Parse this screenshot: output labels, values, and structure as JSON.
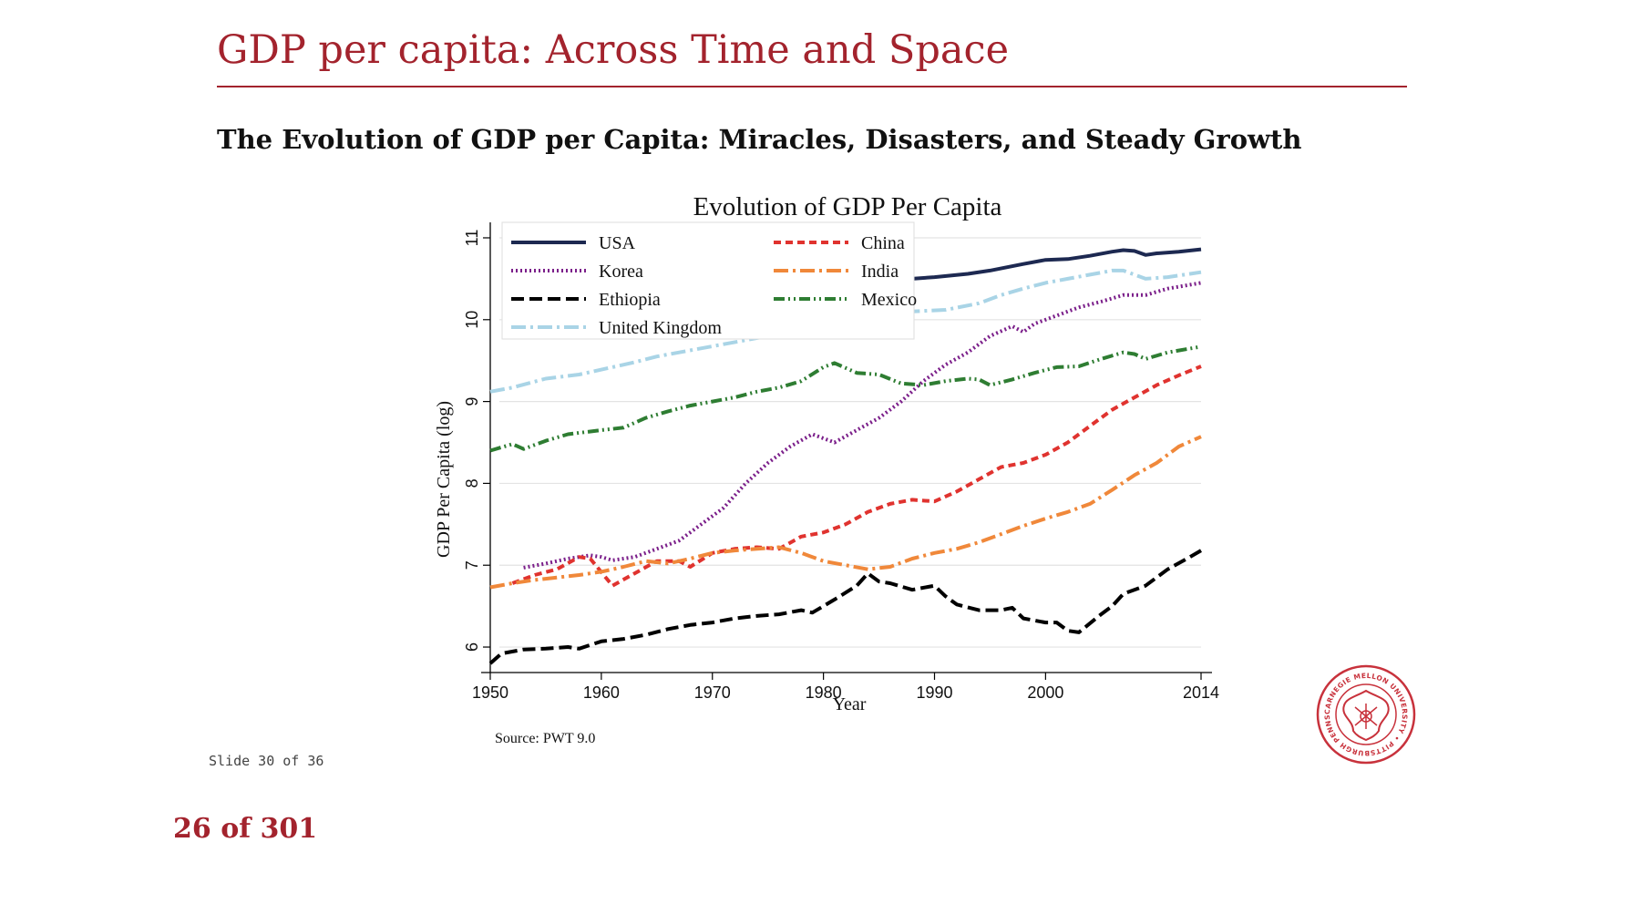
{
  "slide": {
    "title": "GDP per capita: Across Time and Space",
    "subtitle": "The Evolution of GDP per Capita: Miracles, Disasters, and Steady Growth",
    "slide_counter": "Slide 30 of 36",
    "page_counter": "26 of 301",
    "seal_text": "CARNEGIE MELLON UNIVERSITY • PITTSBURGH PENNSYLVANIA 1900",
    "accent_color": "#a3232d"
  },
  "chart_data": {
    "type": "line",
    "title": "Evolution of GDP Per Capita",
    "xlabel": "Year",
    "ylabel": "GDP Per Capita (log)",
    "source": "Source: PWT 9.0",
    "xlim": [
      1950,
      2014
    ],
    "ylim": [
      5.8,
      11.1
    ],
    "xticks": [
      1950,
      1960,
      1970,
      1980,
      1990,
      2000,
      2014
    ],
    "yticks": [
      6,
      7,
      8,
      9,
      10,
      11
    ],
    "grid": true,
    "legend_position": "top-left",
    "series": [
      {
        "name": "USA",
        "color": "#1d2951",
        "dash": "solid",
        "points": [
          [
            1985,
            10.45
          ],
          [
            1988,
            10.5
          ],
          [
            1990,
            10.52
          ],
          [
            1993,
            10.56
          ],
          [
            1995,
            10.6
          ],
          [
            1998,
            10.68
          ],
          [
            2000,
            10.73
          ],
          [
            2002,
            10.74
          ],
          [
            2004,
            10.78
          ],
          [
            2006,
            10.83
          ],
          [
            2007,
            10.85
          ],
          [
            2008,
            10.84
          ],
          [
            2009,
            10.79
          ],
          [
            2010,
            10.81
          ],
          [
            2012,
            10.83
          ],
          [
            2014,
            10.86
          ]
        ]
      },
      {
        "name": "Korea",
        "color": "#7b1f8a",
        "dash": "dotted",
        "points": [
          [
            1953,
            6.97
          ],
          [
            1955,
            7.02
          ],
          [
            1957,
            7.08
          ],
          [
            1959,
            7.12
          ],
          [
            1960,
            7.1
          ],
          [
            1961,
            7.06
          ],
          [
            1963,
            7.1
          ],
          [
            1965,
            7.2
          ],
          [
            1967,
            7.3
          ],
          [
            1969,
            7.5
          ],
          [
            1971,
            7.7
          ],
          [
            1973,
            8.0
          ],
          [
            1975,
            8.25
          ],
          [
            1977,
            8.45
          ],
          [
            1979,
            8.6
          ],
          [
            1980,
            8.55
          ],
          [
            1981,
            8.5
          ],
          [
            1983,
            8.65
          ],
          [
            1985,
            8.8
          ],
          [
            1987,
            9.0
          ],
          [
            1989,
            9.25
          ],
          [
            1991,
            9.45
          ],
          [
            1993,
            9.6
          ],
          [
            1995,
            9.8
          ],
          [
            1997,
            9.92
          ],
          [
            1998,
            9.85
          ],
          [
            1999,
            9.95
          ],
          [
            2001,
            10.05
          ],
          [
            2003,
            10.15
          ],
          [
            2005,
            10.22
          ],
          [
            2007,
            10.3
          ],
          [
            2009,
            10.3
          ],
          [
            2011,
            10.38
          ],
          [
            2014,
            10.45
          ]
        ]
      },
      {
        "name": "Ethiopia",
        "color": "#000000",
        "dash": "longdash",
        "points": [
          [
            1950,
            5.8
          ],
          [
            1951,
            5.92
          ],
          [
            1953,
            5.97
          ],
          [
            1955,
            5.98
          ],
          [
            1957,
            6.0
          ],
          [
            1958,
            5.98
          ],
          [
            1960,
            6.07
          ],
          [
            1962,
            6.1
          ],
          [
            1964,
            6.15
          ],
          [
            1966,
            6.22
          ],
          [
            1968,
            6.27
          ],
          [
            1970,
            6.3
          ],
          [
            1972,
            6.35
          ],
          [
            1974,
            6.38
          ],
          [
            1976,
            6.4
          ],
          [
            1978,
            6.45
          ],
          [
            1979,
            6.42
          ],
          [
            1981,
            6.58
          ],
          [
            1983,
            6.75
          ],
          [
            1984,
            6.9
          ],
          [
            1985,
            6.8
          ],
          [
            1986,
            6.78
          ],
          [
            1988,
            6.7
          ],
          [
            1990,
            6.75
          ],
          [
            1991,
            6.62
          ],
          [
            1992,
            6.52
          ],
          [
            1994,
            6.45
          ],
          [
            1996,
            6.45
          ],
          [
            1997,
            6.48
          ],
          [
            1998,
            6.35
          ],
          [
            2000,
            6.3
          ],
          [
            2001,
            6.3
          ],
          [
            2002,
            6.2
          ],
          [
            2003,
            6.18
          ],
          [
            2005,
            6.4
          ],
          [
            2006,
            6.5
          ],
          [
            2007,
            6.65
          ],
          [
            2009,
            6.75
          ],
          [
            2011,
            6.95
          ],
          [
            2013,
            7.1
          ],
          [
            2014,
            7.18
          ]
        ]
      },
      {
        "name": "United Kingdom",
        "color": "#a9d4e6",
        "dash": "dashdot",
        "points": [
          [
            1950,
            9.12
          ],
          [
            1952,
            9.17
          ],
          [
            1955,
            9.28
          ],
          [
            1958,
            9.33
          ],
          [
            1961,
            9.42
          ],
          [
            1963,
            9.48
          ],
          [
            1965,
            9.55
          ],
          [
            1985,
            10.05
          ],
          [
            1988,
            10.1
          ],
          [
            1991,
            10.12
          ],
          [
            1994,
            10.2
          ],
          [
            1996,
            10.3
          ],
          [
            1998,
            10.38
          ],
          [
            2000,
            10.45
          ],
          [
            2002,
            10.5
          ],
          [
            2004,
            10.55
          ],
          [
            2006,
            10.6
          ],
          [
            2007,
            10.6
          ],
          [
            2008,
            10.55
          ],
          [
            2009,
            10.5
          ],
          [
            2011,
            10.52
          ],
          [
            2014,
            10.58
          ]
        ]
      },
      {
        "name": "China",
        "color": "#e0332f",
        "dash": "dashed",
        "points": [
          [
            1952,
            6.78
          ],
          [
            1954,
            6.88
          ],
          [
            1956,
            6.95
          ],
          [
            1958,
            7.1
          ],
          [
            1959,
            7.08
          ],
          [
            1961,
            6.75
          ],
          [
            1963,
            6.9
          ],
          [
            1965,
            7.05
          ],
          [
            1967,
            7.05
          ],
          [
            1968,
            6.98
          ],
          [
            1970,
            7.15
          ],
          [
            1972,
            7.2
          ],
          [
            1974,
            7.22
          ],
          [
            1976,
            7.2
          ],
          [
            1978,
            7.35
          ],
          [
            1980,
            7.4
          ],
          [
            1982,
            7.5
          ],
          [
            1984,
            7.65
          ],
          [
            1986,
            7.75
          ],
          [
            1988,
            7.8
          ],
          [
            1990,
            7.78
          ],
          [
            1992,
            7.9
          ],
          [
            1994,
            8.05
          ],
          [
            1996,
            8.2
          ],
          [
            1998,
            8.25
          ],
          [
            2000,
            8.35
          ],
          [
            2002,
            8.5
          ],
          [
            2004,
            8.7
          ],
          [
            2006,
            8.9
          ],
          [
            2008,
            9.05
          ],
          [
            2010,
            9.2
          ],
          [
            2012,
            9.32
          ],
          [
            2014,
            9.43
          ]
        ]
      },
      {
        "name": "India",
        "color": "#f0883a",
        "dash": "dashdot",
        "points": [
          [
            1950,
            6.73
          ],
          [
            1952,
            6.78
          ],
          [
            1954,
            6.82
          ],
          [
            1956,
            6.85
          ],
          [
            1958,
            6.88
          ],
          [
            1960,
            6.92
          ],
          [
            1962,
            6.98
          ],
          [
            1964,
            7.05
          ],
          [
            1966,
            7.02
          ],
          [
            1968,
            7.08
          ],
          [
            1970,
            7.15
          ],
          [
            1972,
            7.18
          ],
          [
            1974,
            7.2
          ],
          [
            1976,
            7.22
          ],
          [
            1978,
            7.15
          ],
          [
            1980,
            7.05
          ],
          [
            1982,
            7.0
          ],
          [
            1984,
            6.95
          ],
          [
            1986,
            6.98
          ],
          [
            1988,
            7.08
          ],
          [
            1990,
            7.15
          ],
          [
            1992,
            7.2
          ],
          [
            1994,
            7.28
          ],
          [
            1996,
            7.38
          ],
          [
            1998,
            7.48
          ],
          [
            2000,
            7.57
          ],
          [
            2002,
            7.65
          ],
          [
            2004,
            7.75
          ],
          [
            2006,
            7.92
          ],
          [
            2008,
            8.1
          ],
          [
            2010,
            8.25
          ],
          [
            2012,
            8.45
          ],
          [
            2014,
            8.57
          ]
        ]
      },
      {
        "name": "Mexico",
        "color": "#2e7d32",
        "dash": "dashdotdot",
        "points": [
          [
            1950,
            8.4
          ],
          [
            1952,
            8.48
          ],
          [
            1953,
            8.42
          ],
          [
            1955,
            8.52
          ],
          [
            1957,
            8.6
          ],
          [
            1960,
            8.65
          ],
          [
            1962,
            8.68
          ],
          [
            1964,
            8.8
          ],
          [
            1966,
            8.88
          ],
          [
            1968,
            8.95
          ],
          [
            1970,
            9.0
          ],
          [
            1972,
            9.05
          ],
          [
            1974,
            9.12
          ],
          [
            1976,
            9.17
          ],
          [
            1978,
            9.25
          ],
          [
            1980,
            9.42
          ],
          [
            1981,
            9.47
          ],
          [
            1983,
            9.35
          ],
          [
            1985,
            9.33
          ],
          [
            1987,
            9.22
          ],
          [
            1989,
            9.2
          ],
          [
            1991,
            9.25
          ],
          [
            1993,
            9.28
          ],
          [
            1994,
            9.27
          ],
          [
            1995,
            9.2
          ],
          [
            1997,
            9.27
          ],
          [
            1999,
            9.35
          ],
          [
            2001,
            9.42
          ],
          [
            2003,
            9.43
          ],
          [
            2005,
            9.52
          ],
          [
            2007,
            9.6
          ],
          [
            2008,
            9.58
          ],
          [
            2009,
            9.52
          ],
          [
            2011,
            9.6
          ],
          [
            2014,
            9.67
          ]
        ]
      }
    ]
  }
}
